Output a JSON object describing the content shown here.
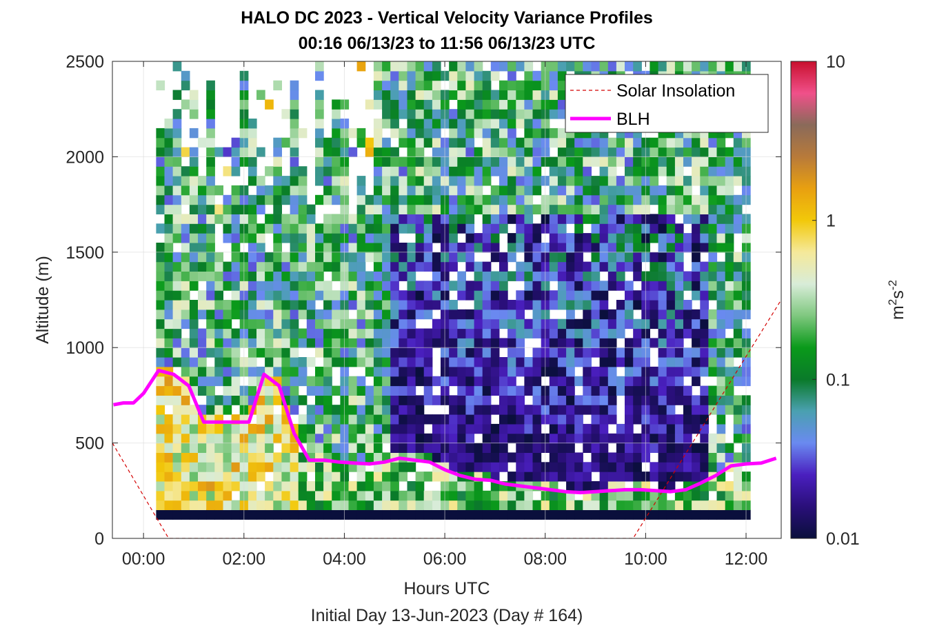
{
  "chart_data": {
    "type": "heatmap",
    "title": "HALO DC 2023 - Vertical Velocity Variance Profiles",
    "subtitle": "00:16 06/13/23 to 11:56 06/13/23  UTC",
    "xlabel": "Hours UTC",
    "xlabel2": "Initial Day 13-Jun-2023 (Day # 164)",
    "ylabel": "Altitude (m)",
    "xlim": [
      -0.62,
      12.7
    ],
    "ylim": [
      0,
      2500
    ],
    "x_ticks": [
      0,
      2,
      4,
      6,
      8,
      10,
      12
    ],
    "x_tick_labels": [
      "00:00",
      "02:00",
      "04:00",
      "06:00",
      "08:00",
      "10:00",
      "12:00"
    ],
    "y_ticks": [
      0,
      500,
      1000,
      1500,
      2000,
      2500
    ],
    "y_tick_labels": [
      "0",
      "500",
      "1000",
      "1500",
      "2000",
      "2500"
    ],
    "grid": true,
    "legend_position": "top-right",
    "colorbar": {
      "label_base": "m",
      "label_sup1": "2",
      "label_mid": "s",
      "label_sup2": "-2",
      "scale": "log",
      "range": [
        0.01,
        10
      ],
      "ticks": [
        0.01,
        0.1,
        1,
        10
      ],
      "tick_labels": [
        "0.01",
        "0.1",
        "1",
        "10"
      ],
      "stops": [
        "#0a0f3c",
        "#2a0f7a",
        "#4a1fbf",
        "#6a8af0",
        "#4aa0b0",
        "#0a7a2a",
        "#0a9a1a",
        "#7fc87f",
        "#d8ecd8",
        "#f5e99a",
        "#f2c80a",
        "#e8a010",
        "#b87a3a",
        "#8a6a5a",
        "#f0508a",
        "#c8102e"
      ]
    },
    "series": [
      {
        "name": "Solar Insolation",
        "style": "dashed",
        "color": "#d40000",
        "x": [
          -0.62,
          0.5,
          9.75,
          12.7
        ],
        "y": [
          500,
          0,
          0,
          1250
        ]
      },
      {
        "name": "BLH",
        "style": "solid",
        "color": "#ff00ff",
        "x": [
          -0.6,
          -0.4,
          -0.2,
          0.0,
          0.3,
          0.6,
          0.9,
          1.2,
          1.5,
          1.8,
          2.1,
          2.4,
          2.7,
          3.0,
          3.3,
          3.6,
          3.9,
          4.2,
          4.5,
          4.8,
          5.1,
          5.4,
          5.7,
          6.0,
          6.3,
          6.6,
          6.9,
          7.2,
          7.5,
          7.8,
          8.1,
          8.4,
          8.7,
          9.0,
          9.3,
          9.6,
          9.9,
          10.2,
          10.5,
          10.8,
          11.1,
          11.4,
          11.7,
          12.0,
          12.3,
          12.6
        ],
        "y": [
          700,
          710,
          710,
          760,
          880,
          860,
          800,
          610,
          610,
          610,
          610,
          860,
          800,
          550,
          410,
          410,
          400,
          395,
          390,
          400,
          420,
          410,
          400,
          360,
          330,
          310,
          305,
          285,
          275,
          265,
          255,
          245,
          240,
          245,
          250,
          255,
          255,
          250,
          245,
          255,
          290,
          330,
          380,
          390,
          395,
          420
        ]
      }
    ],
    "heatmap": {
      "x_range": [
        0.25,
        12.0
      ],
      "y_range": [
        100,
        2500
      ],
      "cell_height_m": 50,
      "description_values": "log10 variance per cell"
    }
  }
}
